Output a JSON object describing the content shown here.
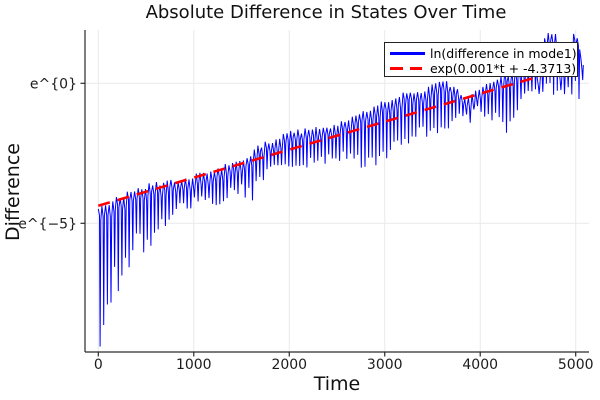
{
  "title": "Absolute Difference in States Over Time",
  "axes": {
    "xlabel": "Time",
    "ylabel": "Difference",
    "x_tick_labels": [
      "0",
      "1000",
      "2000",
      "3000",
      "4000",
      "5000"
    ],
    "x_tick_values": [
      0,
      1000,
      2000,
      3000,
      4000,
      5000
    ],
    "y_tick_labels": [
      "e^{0}",
      "e^{−5}"
    ],
    "y_tick_ln_values": [
      0,
      -5
    ],
    "xlim": [
      -140,
      5140
    ],
    "ylim_ln": [
      -9.6,
      1.9
    ],
    "grid": true
  },
  "legend": {
    "position": "top-right",
    "entries": [
      {
        "label": "ln(difference in mode1)",
        "color": "#0000ff",
        "line_style": "solid"
      },
      {
        "label": "exp(0.001*t + -4.3713)",
        "color": "#ff0000",
        "line_style": "dashed"
      }
    ]
  },
  "colors": {
    "series1_blue": "#0000ff",
    "series2_red": "#ff0000",
    "grid": "#e9e9e9",
    "axis": "#2a2a2a",
    "tick_label": "#1c1c1c",
    "background": "#ffffff"
  },
  "chart_data": {
    "type": "line",
    "title": "Absolute Difference in States Over Time",
    "xlabel": "Time",
    "ylabel": "Difference",
    "y_scale": "natural-log, tick labels rendered as e^{n}",
    "xlim": [
      -140,
      5140
    ],
    "ylim_ln": [
      -9.6,
      1.9
    ],
    "x_ticks": [
      0,
      1000,
      2000,
      3000,
      4000,
      5000
    ],
    "y_ticks": [
      {
        "label": "e^{0}",
        "ln_value": 0
      },
      {
        "label": "e^{−5}",
        "ln_value": -5
      }
    ],
    "grid": true,
    "legend_position": "top-right",
    "series": [
      {
        "name": "ln(difference in mode1)",
        "color": "#0000ff",
        "style": "solid",
        "description": "rapidly oscillating signal (period ≈ 38 t-units) whose upper/lower envelopes rise over time; values are ln(difference). Keypoints are [t, ln_top, ln_bottom].",
        "t_range": [
          0,
          5060
        ],
        "oscillation_period": 38,
        "envelope_keypoints": [
          [
            0,
            -4.55,
            -9.4
          ],
          [
            80,
            -4.35,
            -8.3
          ],
          [
            180,
            -4.15,
            -7.5
          ],
          [
            300,
            -3.9,
            -6.9
          ],
          [
            420,
            -3.8,
            -6.3
          ],
          [
            550,
            -3.65,
            -5.8
          ],
          [
            700,
            -3.55,
            -5.1
          ],
          [
            850,
            -3.45,
            -4.7
          ],
          [
            1000,
            -3.3,
            -4.5
          ],
          [
            1150,
            -3.15,
            -4.6
          ],
          [
            1300,
            -3.0,
            -4.2
          ],
          [
            1450,
            -2.8,
            -4.0
          ],
          [
            1600,
            -2.5,
            -4.25
          ],
          [
            1700,
            -2.25,
            -3.6
          ],
          [
            1850,
            -2.0,
            -3.3
          ],
          [
            2000,
            -1.8,
            -3.15
          ],
          [
            2200,
            -1.68,
            -3.0
          ],
          [
            2400,
            -1.58,
            -2.92
          ],
          [
            2600,
            -1.35,
            -2.85
          ],
          [
            2750,
            -1.1,
            -3.05
          ],
          [
            2900,
            -0.85,
            -3.2
          ],
          [
            3050,
            -0.6,
            -2.7
          ],
          [
            3200,
            -0.42,
            -2.2
          ],
          [
            3350,
            -0.3,
            -2.0
          ],
          [
            3500,
            -0.12,
            -1.9
          ],
          [
            3640,
            0.05,
            -1.7
          ],
          [
            3760,
            -0.3,
            -1.55
          ],
          [
            3860,
            -0.55,
            -1.45
          ],
          [
            3960,
            -0.3,
            -1.35
          ],
          [
            4070,
            -0.02,
            -1.4
          ],
          [
            4180,
            0.2,
            -1.6
          ],
          [
            4260,
            0.3,
            -1.8
          ],
          [
            4360,
            0.42,
            -1.05
          ],
          [
            4470,
            0.55,
            -0.8
          ],
          [
            4570,
            0.95,
            -0.6
          ],
          [
            4660,
            1.65,
            -0.5
          ],
          [
            4770,
            1.75,
            -0.45
          ],
          [
            4850,
            1.35,
            -0.4
          ],
          [
            4930,
            1.8,
            -0.55
          ],
          [
            4990,
            1.85,
            0.2
          ],
          [
            5020,
            1.6,
            -0.85
          ],
          [
            5060,
            0.7,
            -0.15
          ]
        ]
      },
      {
        "name": "exp(0.001*t + -4.3713)",
        "color": "#ff0000",
        "style": "dashed",
        "fit": {
          "slope": 0.001,
          "intercept": -4.3713
        },
        "t_range": [
          0,
          5000
        ],
        "endpoints_ln": [
          [
            0,
            -4.3713
          ],
          [
            5000,
            0.6287
          ]
        ]
      }
    ]
  }
}
